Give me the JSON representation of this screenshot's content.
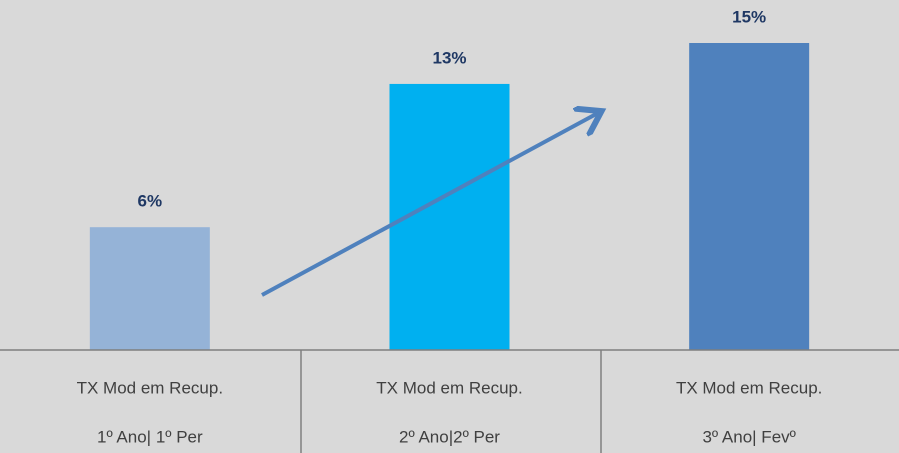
{
  "chart_data": {
    "type": "bar",
    "categories": [
      [
        "TX Mod em Recup.",
        "1º Ano| 1º Per"
      ],
      [
        "TX Mod em Recup.",
        "2º Ano|2º Per"
      ],
      [
        "TX Mod em Recup.",
        "3º Ano| Fevº"
      ]
    ],
    "values": [
      6,
      13,
      15
    ],
    "value_labels": [
      "6%",
      "13%",
      "15%"
    ],
    "colors": [
      "#95b3d7",
      "#00b0f0",
      "#4f81bd"
    ]
  }
}
